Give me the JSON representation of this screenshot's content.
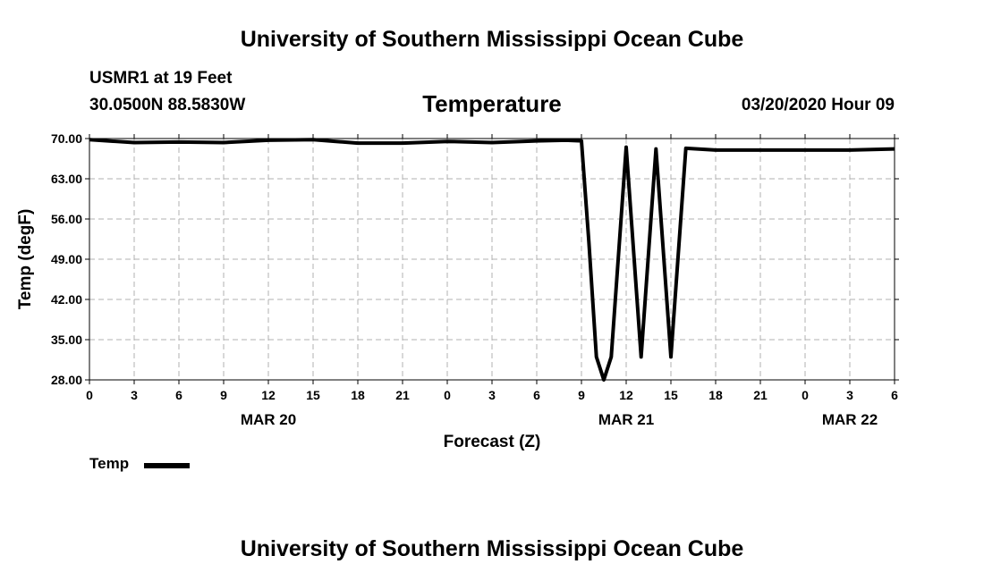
{
  "header": {
    "title": "University of Southern Mississippi Ocean Cube",
    "station": "USMR1 at 19 Feet",
    "coords": "30.0500N 88.5830W",
    "variable": "Temperature",
    "run": "03/20/2020 Hour 09"
  },
  "footer": {
    "title": "University of Southern Mississippi Ocean Cube"
  },
  "chart_data": {
    "type": "line",
    "title": "Temperature",
    "xlabel": "Forecast (Z)",
    "ylabel": "Temp (degF)",
    "ylim": [
      28,
      70
    ],
    "xlim": [
      0,
      54
    ],
    "grid": true,
    "y_ticks": [
      "28.00",
      "35.00",
      "42.00",
      "49.00",
      "56.00",
      "63.00",
      "70.00"
    ],
    "x_ticks": [
      {
        "x": 0,
        "label": "0"
      },
      {
        "x": 3,
        "label": "3"
      },
      {
        "x": 6,
        "label": "6"
      },
      {
        "x": 9,
        "label": "9"
      },
      {
        "x": 12,
        "label": "12"
      },
      {
        "x": 15,
        "label": "15"
      },
      {
        "x": 18,
        "label": "18"
      },
      {
        "x": 21,
        "label": "21"
      },
      {
        "x": 24,
        "label": "0"
      },
      {
        "x": 27,
        "label": "3"
      },
      {
        "x": 30,
        "label": "6"
      },
      {
        "x": 33,
        "label": "9"
      },
      {
        "x": 36,
        "label": "12"
      },
      {
        "x": 39,
        "label": "15"
      },
      {
        "x": 42,
        "label": "18"
      },
      {
        "x": 45,
        "label": "21"
      },
      {
        "x": 48,
        "label": "0"
      },
      {
        "x": 51,
        "label": "3"
      },
      {
        "x": 54,
        "label": "6"
      }
    ],
    "date_labels": [
      {
        "x": 12,
        "label": "MAR 20"
      },
      {
        "x": 36,
        "label": "MAR 21"
      },
      {
        "x": 51,
        "label": "MAR 22"
      }
    ],
    "legend": {
      "position": "bottom-left",
      "entries": [
        "Temp"
      ]
    },
    "series": [
      {
        "name": "Temp",
        "color": "#000000",
        "points": [
          [
            0,
            69.8
          ],
          [
            3,
            69.3
          ],
          [
            6,
            69.4
          ],
          [
            9,
            69.3
          ],
          [
            12,
            69.7
          ],
          [
            15,
            69.8
          ],
          [
            18,
            69.2
          ],
          [
            21,
            69.2
          ],
          [
            24,
            69.5
          ],
          [
            27,
            69.3
          ],
          [
            30,
            69.6
          ],
          [
            32,
            69.7
          ],
          [
            33,
            69.6
          ],
          [
            33.5,
            52
          ],
          [
            34,
            32
          ],
          [
            34.5,
            28
          ],
          [
            35,
            32
          ],
          [
            36,
            68.5
          ],
          [
            37,
            32
          ],
          [
            38,
            68.2
          ],
          [
            39,
            32
          ],
          [
            40,
            68.3
          ],
          [
            42,
            68.0
          ],
          [
            45,
            68.0
          ],
          [
            48,
            68.0
          ],
          [
            51,
            68.0
          ],
          [
            54,
            68.2
          ]
        ]
      }
    ]
  }
}
